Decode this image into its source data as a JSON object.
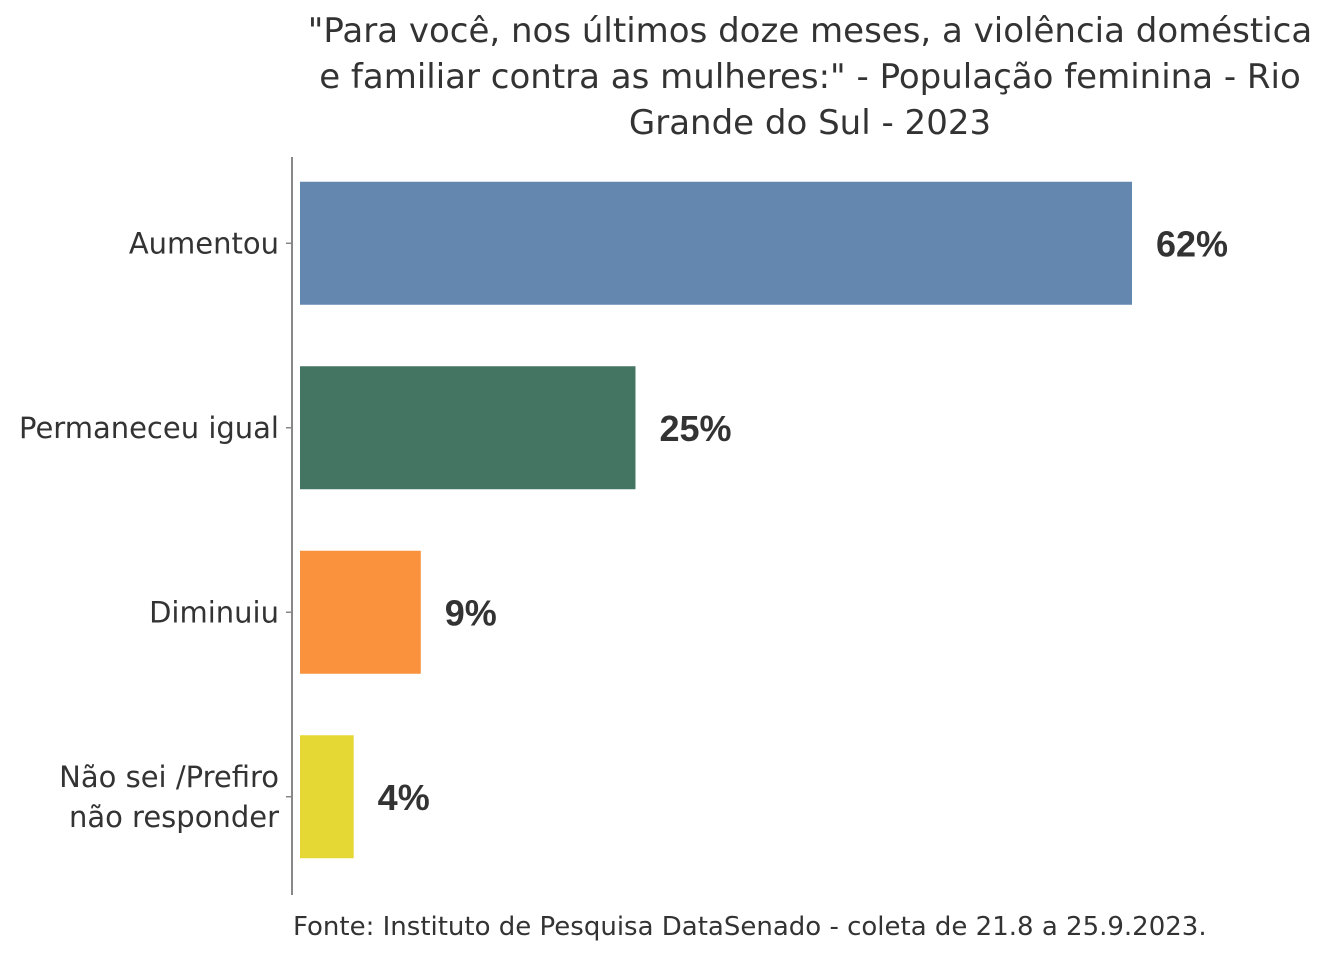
{
  "chart_data": {
    "type": "bar",
    "orientation": "horizontal",
    "title_lines": [
      "\"Para você, nos últimos doze meses, a violência doméstica",
      "e familiar contra as mulheres:\" - População feminina - Rio",
      "Grande do Sul - 2023"
    ],
    "categories": [
      "Aumentou",
      "Permaneceu igual",
      "Diminuiu",
      "Não sei /Prefiro\nnão responder"
    ],
    "values": [
      62,
      25,
      9,
      4
    ],
    "data_labels": [
      "62%",
      "25%",
      "9%",
      "4%"
    ],
    "colors": [
      "#6487b0",
      "#447562",
      "#f9913d",
      "#e5d835"
    ],
    "xlabel": "",
    "ylabel": "",
    "xlim": [
      0,
      70
    ],
    "grid": false,
    "source": "Fonte: Instituto de Pesquisa DataSenado - coleta de 21.8 a 25.9.2023."
  }
}
